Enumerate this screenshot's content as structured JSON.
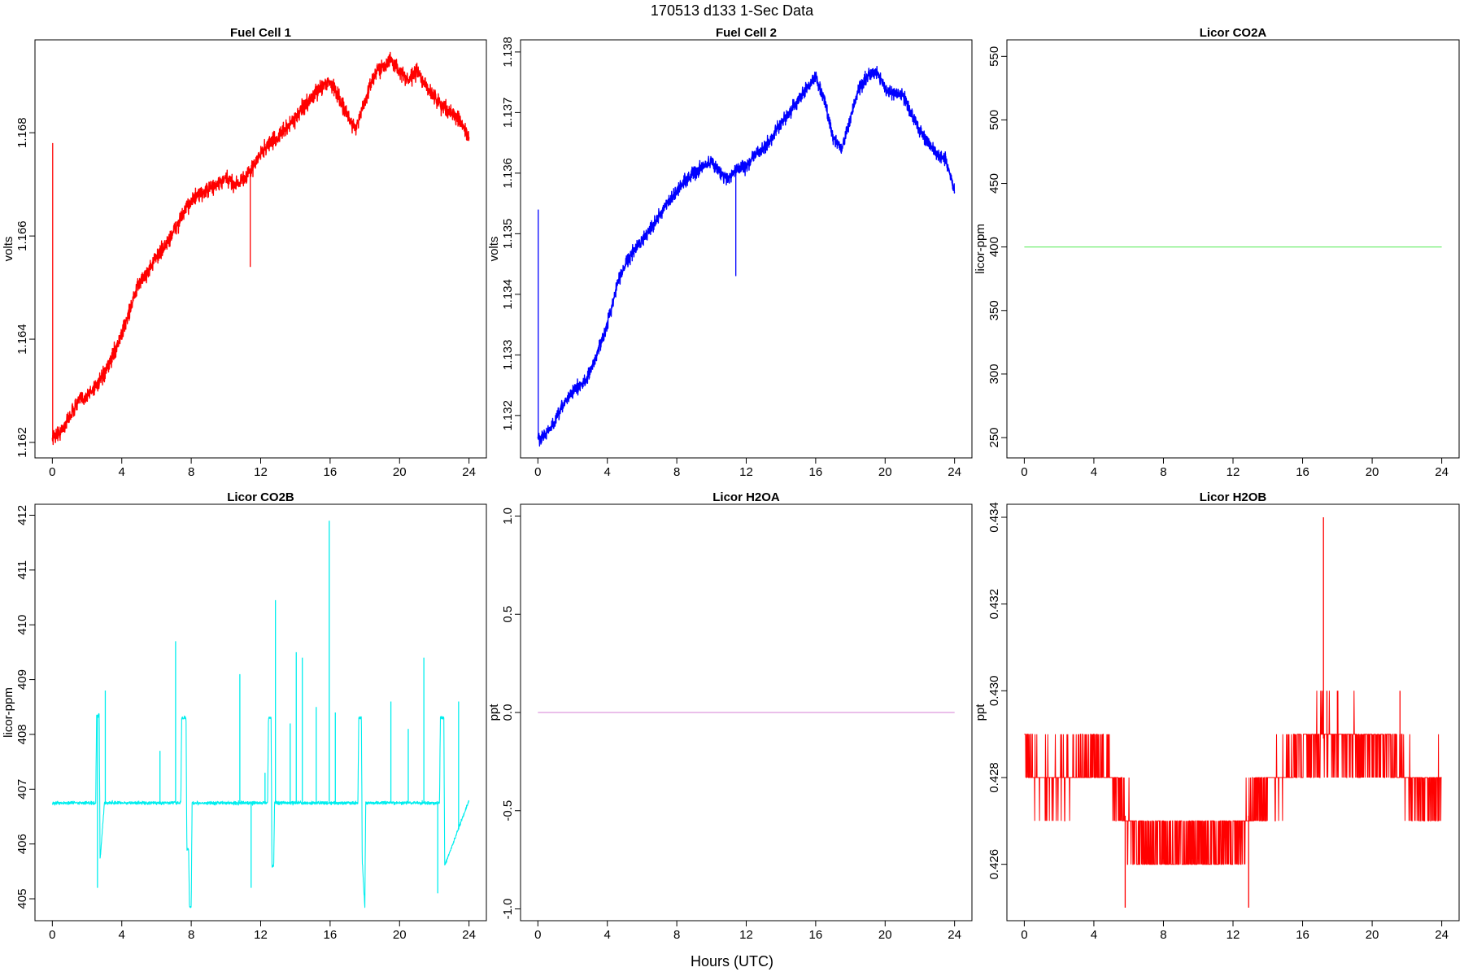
{
  "figure": {
    "title": "170513   d133   1-Sec Data",
    "xlabel": "Hours (UTC)"
  },
  "chart_data": [
    {
      "type": "line",
      "title": "Fuel Cell 1",
      "ylabel": "volts",
      "color": "#ff0000",
      "style": "noisy",
      "noise": 0.00025,
      "xlim": [
        -1,
        25
      ],
      "ylim": [
        1.1617,
        1.1698
      ],
      "xticks": [
        0,
        4,
        8,
        12,
        16,
        20,
        24
      ],
      "yticks": [
        1.162,
        1.164,
        1.166,
        1.168
      ],
      "ytick_labels": [
        "1.162",
        "1.164",
        "1.166",
        "1.168"
      ],
      "series": [
        {
          "x": [
            0,
            0.5,
            1,
            1.5,
            2,
            2.5,
            3,
            3.5,
            4,
            4.5,
            5,
            5.5,
            6,
            6.5,
            7,
            7.5,
            8,
            8.5,
            9,
            9.5,
            10,
            10.5,
            11,
            11.5,
            12,
            12.5,
            13,
            13.5,
            14,
            14.5,
            15,
            15.5,
            16,
            16.5,
            17,
            17.5,
            18,
            18.5,
            19,
            19.5,
            20,
            20.5,
            21,
            21.5,
            22,
            22.5,
            23,
            23.5,
            24
          ],
          "y": [
            1.1621,
            1.1622,
            1.1625,
            1.1628,
            1.1629,
            1.1631,
            1.1633,
            1.1637,
            1.1641,
            1.1646,
            1.1651,
            1.1653,
            1.1656,
            1.1658,
            1.1661,
            1.1664,
            1.1667,
            1.1668,
            1.1669,
            1.167,
            1.1671,
            1.167,
            1.1671,
            1.1673,
            1.1676,
            1.1678,
            1.1679,
            1.1681,
            1.1683,
            1.1685,
            1.1687,
            1.1689,
            1.169,
            1.1687,
            1.1683,
            1.1681,
            1.1686,
            1.1691,
            1.1693,
            1.1694,
            1.1692,
            1.169,
            1.1692,
            1.1689,
            1.1687,
            1.1685,
            1.1684,
            1.1682,
            1.1679
          ]
        }
      ],
      "spikes": [
        {
          "x": 0.02,
          "y": 1.1678
        },
        {
          "x": 11.4,
          "y": 1.1654
        }
      ]
    },
    {
      "type": "line",
      "title": "Fuel Cell 2",
      "ylabel": "volts",
      "color": "#0000ff",
      "style": "noisy",
      "noise": 0.00018,
      "xlim": [
        -1,
        25
      ],
      "ylim": [
        1.1313,
        1.1382
      ],
      "xticks": [
        0,
        4,
        8,
        12,
        16,
        20,
        24
      ],
      "yticks": [
        1.132,
        1.133,
        1.134,
        1.135,
        1.136,
        1.137,
        1.138
      ],
      "ytick_labels": [
        "1.132",
        "1.133",
        "1.134",
        "1.135",
        "1.136",
        "1.137",
        "1.138"
      ],
      "series": [
        {
          "x": [
            0,
            0.5,
            1,
            1.5,
            2,
            2.5,
            3,
            3.5,
            4,
            4.5,
            5,
            5.5,
            6,
            6.5,
            7,
            7.5,
            8,
            8.5,
            9,
            9.5,
            10,
            10.5,
            11,
            11.5,
            12,
            12.5,
            13,
            13.5,
            14,
            14.5,
            15,
            15.5,
            16,
            16.5,
            17,
            17.5,
            18,
            18.5,
            19,
            19.5,
            20,
            20.5,
            21,
            21.5,
            22,
            22.5,
            23,
            23.5,
            24
          ],
          "y": [
            1.1316,
            1.1317,
            1.1319,
            1.1322,
            1.1324,
            1.1325,
            1.1327,
            1.1331,
            1.1335,
            1.1341,
            1.1345,
            1.1347,
            1.1349,
            1.1351,
            1.1353,
            1.1355,
            1.1357,
            1.1359,
            1.136,
            1.1361,
            1.1362,
            1.136,
            1.1359,
            1.1361,
            1.1361,
            1.1363,
            1.1364,
            1.1366,
            1.1368,
            1.137,
            1.1372,
            1.1374,
            1.1376,
            1.1372,
            1.1366,
            1.1364,
            1.1369,
            1.1374,
            1.1376,
            1.1377,
            1.1374,
            1.1373,
            1.1373,
            1.137,
            1.1367,
            1.1365,
            1.1363,
            1.1362,
            1.1357
          ]
        }
      ],
      "spikes": [
        {
          "x": 0.02,
          "y": 1.1354
        },
        {
          "x": 11.4,
          "y": 1.1343
        }
      ]
    },
    {
      "type": "line",
      "title": "Licor CO2A",
      "ylabel": "licor-ppm",
      "color": "#66ee66",
      "style": "clean",
      "xlim": [
        -1,
        25
      ],
      "ylim": [
        234,
        563
      ],
      "xticks": [
        0,
        4,
        8,
        12,
        16,
        20,
        24
      ],
      "yticks": [
        250,
        300,
        350,
        400,
        450,
        500,
        550
      ],
      "ytick_labels": [
        "250",
        "300",
        "350",
        "400",
        "450",
        "500",
        "550"
      ],
      "series": [
        {
          "x": [
            0,
            24
          ],
          "y": [
            400,
            400
          ]
        }
      ]
    },
    {
      "type": "line",
      "title": "Licor CO2B",
      "ylabel": "licor-ppm",
      "color": "#00eeee",
      "style": "noisy",
      "noise": 0.05,
      "xlim": [
        -1,
        25
      ],
      "ylim": [
        404.6,
        412.2
      ],
      "xticks": [
        0,
        4,
        8,
        12,
        16,
        20,
        24
      ],
      "yticks": [
        405,
        406,
        407,
        408,
        409,
        410,
        411,
        412
      ],
      "ytick_labels": [
        "405",
        "406",
        "407",
        "408",
        "409",
        "410",
        "411",
        "412"
      ],
      "series": [
        {
          "x": [
            0,
            2.5,
            2.55,
            2.7,
            2.75,
            3.0,
            6.2,
            7.4,
            7.45,
            7.7,
            7.75,
            7.85,
            7.9,
            8.0,
            8.05,
            12.4,
            12.45,
            12.6,
            12.65,
            12.75,
            12.8,
            17.6,
            17.65,
            17.8,
            17.85,
            18.0,
            18.05,
            22.3,
            22.35,
            22.55,
            22.6,
            24
          ],
          "y": [
            406.75,
            406.75,
            408.35,
            408.35,
            405.7,
            406.75,
            406.75,
            406.75,
            408.3,
            408.3,
            405.9,
            405.9,
            404.85,
            404.85,
            406.75,
            406.75,
            408.3,
            408.3,
            405.6,
            405.6,
            406.75,
            406.75,
            408.3,
            408.3,
            405.7,
            404.85,
            406.75,
            406.75,
            408.3,
            408.3,
            405.6,
            406.8
          ]
        }
      ],
      "spikes": [
        {
          "x": 2.6,
          "y": 405.2
        },
        {
          "x": 3.05,
          "y": 408.8
        },
        {
          "x": 6.2,
          "y": 407.7
        },
        {
          "x": 7.1,
          "y": 409.7
        },
        {
          "x": 10.8,
          "y": 409.1
        },
        {
          "x": 11.45,
          "y": 405.2
        },
        {
          "x": 12.25,
          "y": 407.3
        },
        {
          "x": 12.85,
          "y": 410.45
        },
        {
          "x": 13.7,
          "y": 408.2
        },
        {
          "x": 14.05,
          "y": 409.5
        },
        {
          "x": 14.4,
          "y": 409.4
        },
        {
          "x": 15.2,
          "y": 408.5
        },
        {
          "x": 15.95,
          "y": 411.9
        },
        {
          "x": 16.3,
          "y": 408.4
        },
        {
          "x": 19.5,
          "y": 408.6
        },
        {
          "x": 20.5,
          "y": 408.1
        },
        {
          "x": 21.4,
          "y": 409.4
        },
        {
          "x": 23.4,
          "y": 408.6
        },
        {
          "x": 22.2,
          "y": 405.1
        }
      ]
    },
    {
      "type": "line",
      "title": "Licor H2OA",
      "ylabel": "ppt",
      "color": "#dd99dd",
      "style": "clean",
      "xlim": [
        -1,
        25
      ],
      "ylim": [
        -1.06,
        1.06
      ],
      "xticks": [
        0,
        4,
        8,
        12,
        16,
        20,
        24
      ],
      "yticks": [
        -1.0,
        -0.5,
        0.0,
        0.5,
        1.0
      ],
      "ytick_labels": [
        "-1.0",
        "-0.5",
        "0.0",
        "0.5",
        "1.0"
      ],
      "series": [
        {
          "x": [
            0,
            24
          ],
          "y": [
            0,
            0
          ]
        }
      ]
    },
    {
      "type": "line",
      "title": "Licor H2OB",
      "ylabel": "ppt",
      "color": "#ff0000",
      "style": "quantized",
      "xlim": [
        -1,
        25
      ],
      "ylim": [
        0.4247,
        0.4343
      ],
      "xticks": [
        0,
        4,
        8,
        12,
        16,
        20,
        24
      ],
      "yticks": [
        0.426,
        0.428,
        0.43,
        0.432,
        0.434
      ],
      "ytick_labels": [
        "0.426",
        "0.428",
        "0.430",
        "0.432",
        "0.434"
      ],
      "series": [
        {
          "x": [
            0,
            0.5,
            1,
            1.5,
            2,
            2.5,
            3,
            3.5,
            4,
            4.5,
            5,
            5.5,
            6,
            6.5,
            7,
            7.5,
            8,
            8.5,
            9,
            9.5,
            10,
            10.5,
            11,
            11.5,
            12,
            12.5,
            13,
            13.5,
            14,
            14.5,
            15,
            15.5,
            16,
            16.5,
            17,
            17.5,
            18,
            18.5,
            19,
            19.5,
            20,
            20.5,
            21,
            21.5,
            22,
            22.5,
            23,
            23.5,
            24
          ],
          "y": [
            0.4285,
            0.4283,
            0.428,
            0.4279,
            0.428,
            0.4281,
            0.4283,
            0.4284,
            0.4285,
            0.4283,
            0.428,
            0.4276,
            0.4268,
            0.4266,
            0.4265,
            0.4265,
            0.4265,
            0.4264,
            0.4265,
            0.4264,
            0.4265,
            0.4264,
            0.4265,
            0.4266,
            0.4266,
            0.4268,
            0.4272,
            0.4276,
            0.4278,
            0.428,
            0.4281,
            0.4284,
            0.4286,
            0.4287,
            0.4289,
            0.4289,
            0.4288,
            0.4287,
            0.4287,
            0.4287,
            0.4287,
            0.4287,
            0.4285,
            0.4283,
            0.4279,
            0.4276,
            0.4275,
            0.4276,
            0.4278
          ]
        }
      ],
      "spikes": [
        {
          "x": 17.2,
          "y": 0.434
        },
        {
          "x": 17.4,
          "y": 0.43
        },
        {
          "x": 18.0,
          "y": 0.43
        },
        {
          "x": 21.6,
          "y": 0.43
        },
        {
          "x": 5.8,
          "y": 0.425
        },
        {
          "x": 12.9,
          "y": 0.425
        }
      ]
    }
  ]
}
